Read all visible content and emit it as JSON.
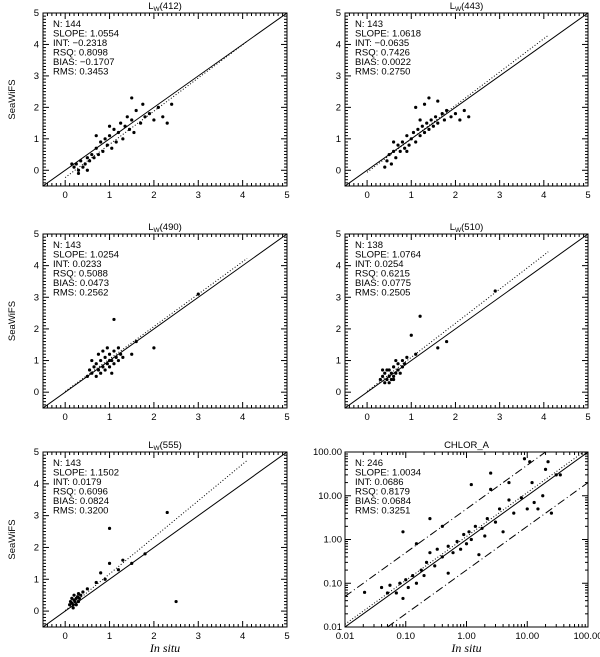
{
  "chart_data": [
    {
      "type": "scatter",
      "title": "Lw(412)",
      "title_main": "L",
      "title_sub": "W",
      "title_rest": "(412)",
      "xlabel": "",
      "ylabel": "SeaWiFS",
      "xlim": [
        -0.5,
        5
      ],
      "ylim": [
        -0.5,
        5
      ],
      "scale": "linear",
      "stats": [
        "N: 144",
        "SLOPE: 1.0554",
        "INT: −0.2318",
        "RSQ: 0.8098",
        "BIAS: −0.1707",
        "RMS: 0.3453"
      ],
      "slope": 1.0554,
      "int": -0.2318,
      "points": [
        [
          0.2,
          0.1
        ],
        [
          0.25,
          0.2
        ],
        [
          0.3,
          0.0
        ],
        [
          0.35,
          0.3
        ],
        [
          0.4,
          0.1
        ],
        [
          0.45,
          0.2
        ],
        [
          0.5,
          0.4
        ],
        [
          0.3,
          -0.1
        ],
        [
          0.55,
          0.3
        ],
        [
          0.6,
          0.5
        ],
        [
          0.65,
          0.4
        ],
        [
          0.7,
          0.7
        ],
        [
          0.75,
          0.5
        ],
        [
          0.8,
          0.9
        ],
        [
          0.85,
          0.6
        ],
        [
          0.9,
          1.0
        ],
        [
          0.95,
          0.8
        ],
        [
          1.0,
          1.1
        ],
        [
          1.05,
          0.7
        ],
        [
          1.1,
          1.3
        ],
        [
          1.15,
          0.9
        ],
        [
          1.2,
          1.2
        ],
        [
          1.25,
          1.5
        ],
        [
          1.3,
          1.0
        ],
        [
          1.35,
          1.4
        ],
        [
          1.4,
          1.7
        ],
        [
          1.45,
          1.3
        ],
        [
          1.5,
          1.6
        ],
        [
          1.55,
          1.2
        ],
        [
          1.6,
          1.9
        ],
        [
          1.7,
          1.5
        ],
        [
          1.75,
          2.1
        ],
        [
          1.8,
          1.7
        ],
        [
          1.9,
          1.8
        ],
        [
          2.0,
          1.6
        ],
        [
          2.1,
          2.0
        ],
        [
          2.2,
          1.7
        ],
        [
          2.3,
          1.5
        ],
        [
          2.4,
          2.1
        ],
        [
          1.5,
          2.3
        ],
        [
          0.15,
          0.2
        ],
        [
          0.5,
          0.0
        ],
        [
          1.0,
          1.4
        ],
        [
          0.7,
          1.1
        ]
      ]
    },
    {
      "type": "scatter",
      "title": "Lw(443)",
      "title_main": "L",
      "title_sub": "W",
      "title_rest": "(443)",
      "xlabel": "",
      "ylabel": "",
      "xlim": [
        -0.5,
        5
      ],
      "ylim": [
        -0.5,
        5
      ],
      "scale": "linear",
      "stats": [
        "N: 143",
        "SLOPE: 1.0618",
        "INT: −0.0635",
        "RSQ: 0.7426",
        "BIAS: 0.0022",
        "RMS: 0.2750"
      ],
      "slope": 1.0618,
      "int": -0.0635,
      "points": [
        [
          0.4,
          0.1
        ],
        [
          0.45,
          0.3
        ],
        [
          0.5,
          0.5
        ],
        [
          0.55,
          0.2
        ],
        [
          0.6,
          0.6
        ],
        [
          0.65,
          0.4
        ],
        [
          0.7,
          0.8
        ],
        [
          0.75,
          0.6
        ],
        [
          0.8,
          0.9
        ],
        [
          0.85,
          0.7
        ],
        [
          0.9,
          1.1
        ],
        [
          0.95,
          0.8
        ],
        [
          1.0,
          1.0
        ],
        [
          1.05,
          1.2
        ],
        [
          1.1,
          0.9
        ],
        [
          1.15,
          1.3
        ],
        [
          1.2,
          1.1
        ],
        [
          1.25,
          1.4
        ],
        [
          1.3,
          1.2
        ],
        [
          1.35,
          1.5
        ],
        [
          1.4,
          1.3
        ],
        [
          1.45,
          1.6
        ],
        [
          1.5,
          1.4
        ],
        [
          1.55,
          1.7
        ],
        [
          1.6,
          1.5
        ],
        [
          1.7,
          1.8
        ],
        [
          1.75,
          1.6
        ],
        [
          1.8,
          1.9
        ],
        [
          1.9,
          1.7
        ],
        [
          2.0,
          1.8
        ],
        [
          2.1,
          1.6
        ],
        [
          2.2,
          1.9
        ],
        [
          2.3,
          1.7
        ],
        [
          1.1,
          2.0
        ],
        [
          1.3,
          2.1
        ],
        [
          1.6,
          2.2
        ],
        [
          1.4,
          2.3
        ],
        [
          0.6,
          0.9
        ],
        [
          0.9,
          0.6
        ],
        [
          1.2,
          1.6
        ]
      ]
    },
    {
      "type": "scatter",
      "title": "Lw(490)",
      "title_main": "L",
      "title_sub": "W",
      "title_rest": "(490)",
      "xlabel": "",
      "ylabel": "SeaWiFS",
      "xlim": [
        -0.5,
        5
      ],
      "ylim": [
        -0.5,
        5
      ],
      "scale": "linear",
      "stats": [
        "N: 143",
        "SLOPE: 1.0254",
        "INT: 0.0233",
        "RSQ: 0.5088",
        "BIAS: 0.0473",
        "RMS: 0.2562"
      ],
      "slope": 1.0254,
      "int": 0.0233,
      "points": [
        [
          0.5,
          0.5
        ],
        [
          0.55,
          0.7
        ],
        [
          0.6,
          0.6
        ],
        [
          0.65,
          0.8
        ],
        [
          0.7,
          0.5
        ],
        [
          0.7,
          0.9
        ],
        [
          0.75,
          0.7
        ],
        [
          0.8,
          0.6
        ],
        [
          0.8,
          1.0
        ],
        [
          0.85,
          0.8
        ],
        [
          0.9,
          0.7
        ],
        [
          0.9,
          1.1
        ],
        [
          0.95,
          0.9
        ],
        [
          1.0,
          0.8
        ],
        [
          1.0,
          1.2
        ],
        [
          1.05,
          1.0
        ],
        [
          1.1,
          0.9
        ],
        [
          1.1,
          1.3
        ],
        [
          1.15,
          1.1
        ],
        [
          1.2,
          1.0
        ],
        [
          1.2,
          1.4
        ],
        [
          1.25,
          1.2
        ],
        [
          1.3,
          1.1
        ],
        [
          0.6,
          1.0
        ],
        [
          0.75,
          1.2
        ],
        [
          0.95,
          1.4
        ],
        [
          1.05,
          0.6
        ],
        [
          1.1,
          2.3
        ],
        [
          1.6,
          1.6
        ],
        [
          2.0,
          1.4
        ],
        [
          1.5,
          1.2
        ],
        [
          3.0,
          3.1
        ],
        [
          0.85,
          1.3
        ],
        [
          1.0,
          1.0
        ]
      ]
    },
    {
      "type": "scatter",
      "title": "Lw(510)",
      "title_main": "L",
      "title_sub": "W",
      "title_rest": "(510)",
      "xlabel": "",
      "ylabel": "",
      "xlim": [
        -0.5,
        5
      ],
      "ylim": [
        -0.5,
        5
      ],
      "scale": "linear",
      "stats": [
        "N: 138",
        "SLOPE: 1.0764",
        "INT: 0.0254",
        "RSQ: 0.6215",
        "BIAS: 0.0775",
        "RMS: 0.2505"
      ],
      "slope": 1.0764,
      "int": 0.0254,
      "points": [
        [
          0.3,
          0.4
        ],
        [
          0.35,
          0.5
        ],
        [
          0.4,
          0.3
        ],
        [
          0.4,
          0.6
        ],
        [
          0.45,
          0.4
        ],
        [
          0.5,
          0.5
        ],
        [
          0.5,
          0.7
        ],
        [
          0.55,
          0.4
        ],
        [
          0.55,
          0.6
        ],
        [
          0.6,
          0.5
        ],
        [
          0.6,
          0.8
        ],
        [
          0.65,
          0.6
        ],
        [
          0.7,
          0.7
        ],
        [
          0.7,
          0.9
        ],
        [
          0.75,
          0.6
        ],
        [
          0.8,
          0.8
        ],
        [
          0.8,
          1.0
        ],
        [
          0.85,
          0.9
        ],
        [
          0.9,
          1.1
        ],
        [
          0.45,
          0.7
        ],
        [
          0.5,
          0.3
        ],
        [
          0.65,
          1.0
        ],
        [
          1.0,
          1.8
        ],
        [
          1.2,
          2.4
        ],
        [
          1.6,
          1.4
        ],
        [
          1.8,
          1.6
        ],
        [
          2.9,
          3.2
        ],
        [
          1.1,
          1.2
        ],
        [
          0.35,
          0.7
        ],
        [
          0.6,
          0.4
        ]
      ]
    },
    {
      "type": "scatter",
      "title": "Lw(555)",
      "title_main": "L",
      "title_sub": "W",
      "title_rest": "(555)",
      "xlabel": "In situ",
      "ylabel": "SeaWiFS",
      "xlim": [
        -0.5,
        5
      ],
      "ylim": [
        -0.5,
        5
      ],
      "scale": "linear",
      "stats": [
        "N: 143",
        "SLOPE: 1.1502",
        "INT: 0.0179",
        "RSQ: 0.6096",
        "BIAS: 0.0824",
        "RMS: 0.3200"
      ],
      "slope": 1.1502,
      "int": 0.0179,
      "points": [
        [
          0.1,
          0.2
        ],
        [
          0.12,
          0.3
        ],
        [
          0.15,
          0.25
        ],
        [
          0.15,
          0.4
        ],
        [
          0.18,
          0.2
        ],
        [
          0.2,
          0.35
        ],
        [
          0.2,
          0.5
        ],
        [
          0.22,
          0.3
        ],
        [
          0.25,
          0.4
        ],
        [
          0.25,
          0.2
        ],
        [
          0.28,
          0.45
        ],
        [
          0.3,
          0.3
        ],
        [
          0.3,
          0.55
        ],
        [
          0.32,
          0.4
        ],
        [
          0.35,
          0.5
        ],
        [
          0.18,
          0.1
        ],
        [
          0.4,
          0.6
        ],
        [
          0.5,
          0.7
        ],
        [
          0.7,
          0.9
        ],
        [
          0.9,
          1.0
        ],
        [
          1.0,
          1.5
        ],
        [
          1.0,
          2.6
        ],
        [
          1.2,
          1.3
        ],
        [
          1.3,
          1.6
        ],
        [
          1.5,
          1.5
        ],
        [
          1.8,
          1.8
        ],
        [
          2.3,
          3.1
        ],
        [
          2.5,
          0.3
        ],
        [
          0.8,
          1.2
        ]
      ]
    },
    {
      "type": "scatter",
      "title": "CHLOR_A",
      "xlabel": "In situ",
      "ylabel": "",
      "xlim": [
        0.01,
        100
      ],
      "ylim": [
        0.01,
        100
      ],
      "scale": "log",
      "xticks": [
        "0.01",
        "0.10",
        "1.00",
        "10.00",
        "100.00"
      ],
      "yticks": [
        "0.01",
        "0.10",
        "1.00",
        "10.00",
        "100.00"
      ],
      "stats": [
        "N: 246",
        "SLOPE: 1.0034",
        "INT: 0.0686",
        "RSQ: 0.8179",
        "BIAS: 0.0684",
        "RMS: 0.3251"
      ],
      "slope": 1.0034,
      "int": 0.0686,
      "points": [
        [
          0.021,
          0.062
        ],
        [
          0.04,
          0.08
        ],
        [
          0.05,
          0.06
        ],
        [
          0.055,
          0.09
        ],
        [
          0.07,
          0.06
        ],
        [
          0.08,
          0.1
        ],
        [
          0.09,
          0.045
        ],
        [
          0.09,
          1.5
        ],
        [
          0.1,
          0.12
        ],
        [
          0.11,
          0.08
        ],
        [
          0.13,
          0.15
        ],
        [
          0.15,
          0.1
        ],
        [
          0.15,
          0.8
        ],
        [
          0.18,
          0.2
        ],
        [
          0.2,
          0.15
        ],
        [
          0.22,
          0.3
        ],
        [
          0.25,
          0.5
        ],
        [
          0.25,
          3.0
        ],
        [
          0.3,
          0.25
        ],
        [
          0.33,
          0.6
        ],
        [
          0.4,
          0.4
        ],
        [
          0.4,
          2.0
        ],
        [
          0.5,
          0.7
        ],
        [
          0.5,
          0.17
        ],
        [
          0.6,
          0.5
        ],
        [
          0.7,
          0.9
        ],
        [
          0.8,
          0.6
        ],
        [
          0.9,
          1.3
        ],
        [
          1.0,
          0.8
        ],
        [
          1.1,
          1.5
        ],
        [
          1.2,
          1.0
        ],
        [
          1.2,
          18
        ],
        [
          1.4,
          2.0
        ],
        [
          1.6,
          0.45
        ],
        [
          1.8,
          1.8
        ],
        [
          2.0,
          1.2
        ],
        [
          2.2,
          3.0
        ],
        [
          2.5,
          33
        ],
        [
          2.5,
          14
        ],
        [
          3.0,
          2.5
        ],
        [
          3.5,
          5.0
        ],
        [
          4.0,
          1.5
        ],
        [
          5.0,
          8.0
        ],
        [
          5.0,
          20
        ],
        [
          6.0,
          4.0
        ],
        [
          8.0,
          9.0
        ],
        [
          9.0,
          70
        ],
        [
          10,
          5
        ],
        [
          11,
          60
        ],
        [
          12,
          20
        ],
        [
          13,
          7
        ],
        [
          15,
          5
        ],
        [
          18,
          10
        ],
        [
          20,
          40
        ],
        [
          22,
          60
        ],
        [
          25,
          4
        ],
        [
          30,
          30
        ],
        [
          35,
          30
        ]
      ]
    }
  ]
}
